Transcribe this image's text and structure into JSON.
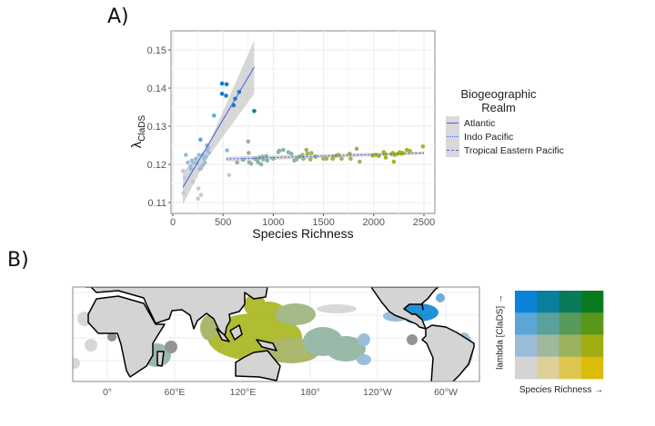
{
  "panels": {
    "a_label": "A)",
    "b_label": "B)"
  },
  "chart_data": [
    {
      "type": "scatter",
      "xlabel": "Species Richness",
      "ylabel": "λ",
      "ylabel_sub": "ClaDS",
      "xlim": [
        0,
        2600
      ],
      "ylim": [
        0.1065,
        0.1555
      ],
      "xticks": [
        "0",
        "500",
        "1000",
        "1500",
        "2000",
        "2500"
      ],
      "xtick_values": [
        0,
        500,
        1000,
        1500,
        2000,
        2500
      ],
      "yticks": [
        "0.11",
        "0.12",
        "0.13",
        "0.14",
        "0.15"
      ],
      "ytick_values": [
        0.11,
        0.12,
        0.13,
        0.14,
        0.15
      ],
      "grid": true,
      "legend": {
        "title_line1": "Biogeographic",
        "title_line2": "Realm",
        "placement": "right",
        "entries": [
          {
            "name": "Atlantic",
            "dash": "solid"
          },
          {
            "name": "Indo Pacific",
            "dash": "dotted"
          },
          {
            "name": "Tropical Eastern Pacific",
            "dash": "dashed"
          }
        ]
      },
      "fits": [
        {
          "name": "Atlantic",
          "x": [
            100,
            810
          ],
          "y": [
            0.114,
            0.1455
          ],
          "ci_low": [
            0.1095,
            0.1385
          ],
          "ci_high": [
            0.118,
            0.1525
          ],
          "ci_mid_x": 330,
          "ci_mid": [
            0.1212,
            0.1238
          ],
          "color": "#3b5ee8",
          "dash": "solid"
        },
        {
          "name": "Indo Pacific",
          "x": [
            530,
            2500
          ],
          "y": [
            0.1214,
            0.123
          ],
          "ci_low": [
            0.1208,
            0.1226
          ],
          "ci_high": [
            0.122,
            0.1234
          ],
          "color": "#3b5ee8",
          "dash": "dotted"
        }
      ],
      "points": [
        [
          490,
          0.1412,
          "#0a7fd6"
        ],
        [
          535,
          0.141,
          "#0a7fd6"
        ],
        [
          490,
          0.1385,
          "#0a7fd6"
        ],
        [
          530,
          0.138,
          "#0a7fd6"
        ],
        [
          620,
          0.1372,
          "#1a80c8"
        ],
        [
          605,
          0.1355,
          "#1a80c8"
        ],
        [
          660,
          0.139,
          "#1a80c8"
        ],
        [
          810,
          0.134,
          "#0b7f96"
        ],
        [
          410,
          0.1328,
          "#5fa8d8"
        ],
        [
          275,
          0.1265,
          "#5fa8d8"
        ],
        [
          130,
          0.1225,
          "#8fbfe0"
        ],
        [
          540,
          0.1237,
          "#8fbfe0"
        ],
        [
          100,
          0.1183,
          "#c9c9c9"
        ],
        [
          105,
          0.1125,
          "#c9c9c9"
        ],
        [
          120,
          0.1165,
          "#c9c9c9"
        ],
        [
          255,
          0.1137,
          "#c9c9c9"
        ],
        [
          280,
          0.112,
          "#c9c9c9"
        ],
        [
          250,
          0.111,
          "#c9c9c9"
        ],
        [
          560,
          0.1172,
          "#c9c9c9"
        ],
        [
          200,
          0.1155,
          "#c9c9c9"
        ],
        [
          150,
          0.1205,
          "#9dbcd2"
        ],
        [
          175,
          0.1195,
          "#9dbcd2"
        ],
        [
          190,
          0.121,
          "#9dbcd2"
        ],
        [
          200,
          0.1205,
          "#9dbcd2"
        ],
        [
          230,
          0.1215,
          "#9dbcd2"
        ],
        [
          260,
          0.1225,
          "#9dbcd2"
        ],
        [
          280,
          0.119,
          "#9dbcd2"
        ],
        [
          300,
          0.1225,
          "#9dbcd2"
        ],
        [
          310,
          0.1215,
          "#9dbcd2"
        ],
        [
          320,
          0.1205,
          "#9dbcd2"
        ],
        [
          330,
          0.122,
          "#9dbcd2"
        ],
        [
          340,
          0.125,
          "#9dbcd2"
        ],
        [
          345,
          0.1235,
          "#9dbcd2"
        ],
        [
          350,
          0.1245,
          "#9dbcd2"
        ],
        [
          360,
          0.123,
          "#9dbcd2"
        ],
        [
          300,
          0.1198,
          "#9dbcd2"
        ],
        [
          240,
          0.1203,
          "#9dbcd2"
        ],
        [
          180,
          0.1188,
          "#9dbcd2"
        ],
        [
          270,
          0.1188,
          "#9dbcd2"
        ],
        [
          640,
          0.1205,
          "#8fb3a0"
        ],
        [
          700,
          0.1212,
          "#8fb3a0"
        ],
        [
          750,
          0.126,
          "#8fb3a0"
        ],
        [
          755,
          0.123,
          "#8fb3a0"
        ],
        [
          760,
          0.1205,
          "#8fb3a0"
        ],
        [
          780,
          0.1202,
          "#8fb3a0"
        ],
        [
          820,
          0.1215,
          "#8fb3a0"
        ],
        [
          840,
          0.121,
          "#8fb3a0"
        ],
        [
          850,
          0.1205,
          "#8fb3a0"
        ],
        [
          860,
          0.1218,
          "#8fb3a0"
        ],
        [
          880,
          0.12,
          "#8fb3a0"
        ],
        [
          890,
          0.122,
          "#8fb3a0"
        ],
        [
          900,
          0.1213,
          "#8fb3a0"
        ],
        [
          930,
          0.1222,
          "#8fb3a0"
        ],
        [
          940,
          0.121,
          "#8fb3a0"
        ],
        [
          1000,
          0.1215,
          "#8fb3a0"
        ],
        [
          1050,
          0.1232,
          "#8fb3a0"
        ],
        [
          1060,
          0.1236,
          "#8fb3a0"
        ],
        [
          1100,
          0.1238,
          "#8fb3a0"
        ],
        [
          1150,
          0.1232,
          "#8fb3a0"
        ],
        [
          1180,
          0.1228,
          "#8fb3a0"
        ],
        [
          1210,
          0.121,
          "#8fb3a0"
        ],
        [
          1230,
          0.1213,
          "#8fb3a0"
        ],
        [
          1260,
          0.122,
          "#9cb37c"
        ],
        [
          1290,
          0.1225,
          "#9cb37c"
        ],
        [
          1300,
          0.1215,
          "#9cb37c"
        ],
        [
          1330,
          0.1238,
          "#a3b05a"
        ],
        [
          1340,
          0.1228,
          "#a3b05a"
        ],
        [
          1370,
          0.1213,
          "#a3b05a"
        ],
        [
          1380,
          0.123,
          "#a3b05a"
        ],
        [
          1420,
          0.122,
          "#a3b05a"
        ],
        [
          1500,
          0.1215,
          "#a3b05a"
        ],
        [
          1530,
          0.1215,
          "#a3b05a"
        ],
        [
          1590,
          0.1215,
          "#a3b05a"
        ],
        [
          1600,
          0.122,
          "#a3b05a"
        ],
        [
          1630,
          0.1223,
          "#a3b05a"
        ],
        [
          1650,
          0.1225,
          "#a3b05a"
        ],
        [
          1680,
          0.1215,
          "#a3b05a"
        ],
        [
          1760,
          0.1228,
          "#a3b05a"
        ],
        [
          1770,
          0.1215,
          "#a3b05a"
        ],
        [
          1830,
          0.1241,
          "#a3b05a"
        ],
        [
          1860,
          0.1207,
          "#a3b05a"
        ],
        [
          1990,
          0.1223,
          "#a8b51c"
        ],
        [
          2020,
          0.1225,
          "#a8b51c"
        ],
        [
          2050,
          0.1222,
          "#a8b51c"
        ],
        [
          2100,
          0.1232,
          "#a8b51c"
        ],
        [
          2110,
          0.1228,
          "#a8b51c"
        ],
        [
          2120,
          0.1218,
          "#a8b51c"
        ],
        [
          2180,
          0.1227,
          "#a8b51c"
        ],
        [
          2190,
          0.123,
          "#a8b51c"
        ],
        [
          2200,
          0.1207,
          "#a8b51c"
        ],
        [
          2210,
          0.1225,
          "#a8b51c"
        ],
        [
          2240,
          0.1228,
          "#a8b51c"
        ],
        [
          2260,
          0.1232,
          "#a8b51c"
        ],
        [
          2280,
          0.1228,
          "#a8b51c"
        ],
        [
          2290,
          0.123,
          "#a8b51c"
        ],
        [
          2330,
          0.1238,
          "#a8b51c"
        ],
        [
          2360,
          0.1235,
          "#a8b51c"
        ],
        [
          2490,
          0.1247,
          "#a8b51c"
        ]
      ]
    }
  ],
  "map": {
    "lon_ticks": [
      "0°",
      "60°E",
      "120°E",
      "180°",
      "120°W",
      "60°W"
    ]
  },
  "bivariate_legend": {
    "y_label": "lambda [ClaDS] →",
    "x_label": "Species Richness →",
    "colors": [
      [
        "#0a84d8",
        "#0a7f9e",
        "#0a7a5c",
        "#0a7a1e"
      ],
      [
        "#5ba5d8",
        "#5aa09e",
        "#58995c",
        "#5a961a"
      ],
      [
        "#9bbcd8",
        "#9fb89e",
        "#9bb25c",
        "#a0ad12"
      ],
      [
        "#d4d4d4",
        "#dcd09a",
        "#dcc64e",
        "#dcbc0a"
      ]
    ]
  }
}
